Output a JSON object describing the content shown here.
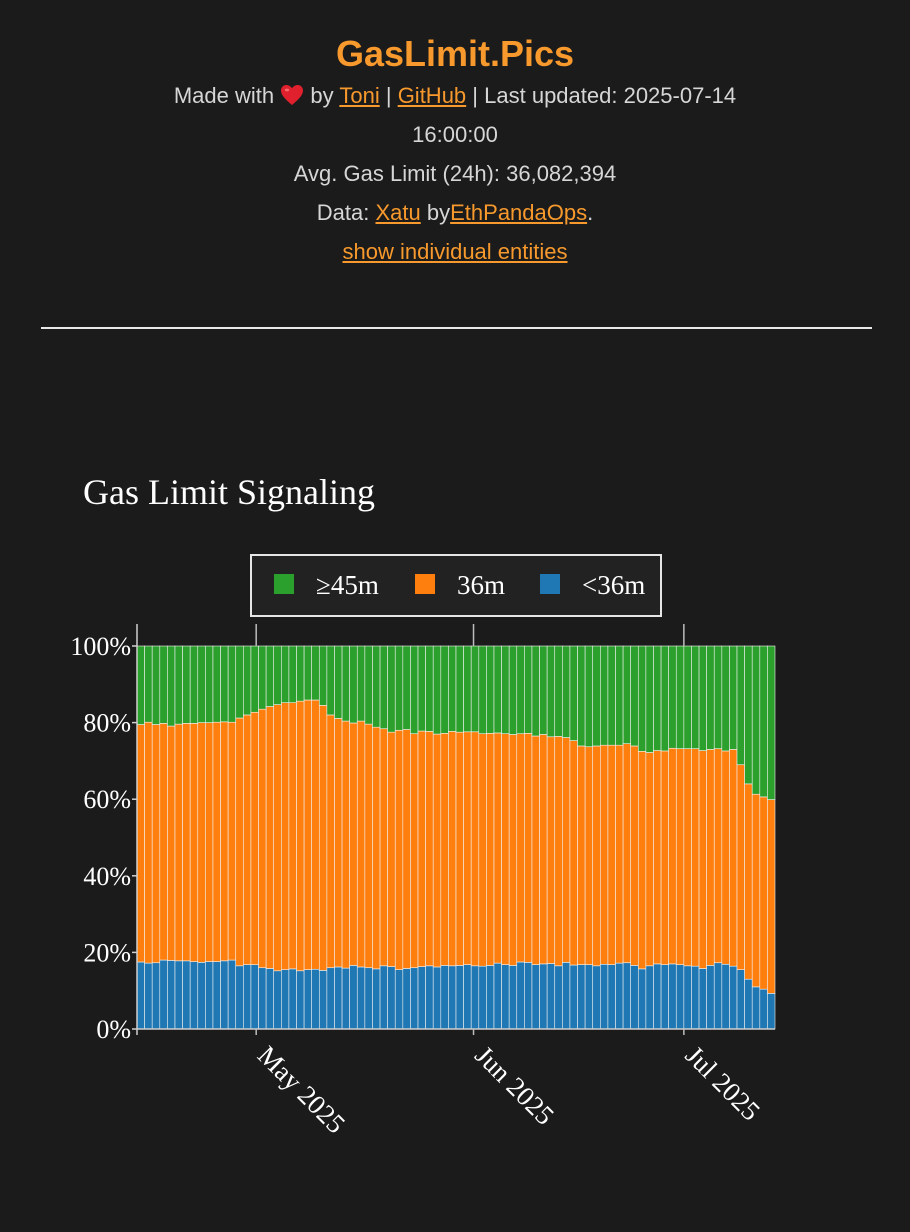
{
  "header": {
    "title": "GasLimit.Pics",
    "made_with": "Made with",
    "by": "by",
    "author_link": "Toni",
    "separator1": "|",
    "github_link": "GitHub",
    "separator2": "|",
    "last_updated_label": "Last updated: 2025-07-14",
    "last_updated_time": "16:00:00",
    "avg_label": "Avg. Gas Limit (24h): 36,082,394",
    "data_label": "Data:",
    "data_source_link": "Xatu",
    "data_by": "by",
    "data_org_link": "EthPandaOps",
    "data_period": ".",
    "toggle_link": "show individual entities"
  },
  "colors": {
    "accent": "#f7992c",
    "background": "#1b1b1b",
    "series_green": "#2ca02c",
    "series_orange": "#ff7f0e",
    "series_blue": "#1f77b4"
  },
  "chart_data": {
    "type": "bar",
    "stacked": true,
    "title": "Gas Limit Signaling",
    "ylim": [
      0,
      100
    ],
    "y_ticks": [
      "0%",
      "20%",
      "40%",
      "60%",
      "80%",
      "100%"
    ],
    "x_range": [
      "2025-04-14",
      "2025-07-14"
    ],
    "x_ticks": [
      {
        "date": "2025-05-01",
        "label": "May 2025"
      },
      {
        "date": "2025-06-01",
        "label": "Jun 2025"
      },
      {
        "date": "2025-07-01",
        "label": "Jul 2025"
      }
    ],
    "legend_position": "top-center",
    "series": [
      {
        "name": "<36m",
        "color": "#1f77b4",
        "values": [
          17.5,
          17.2,
          17.3,
          18.0,
          17.9,
          17.8,
          17.8,
          17.6,
          17.4,
          17.6,
          17.6,
          17.8,
          18.0,
          16.5,
          16.8,
          16.8,
          16.0,
          15.8,
          15.2,
          15.5,
          15.7,
          15.2,
          15.5,
          15.6,
          15.3,
          16.0,
          16.2,
          15.9,
          16.6,
          16.2,
          16.0,
          15.7,
          16.5,
          16.3,
          15.5,
          15.8,
          16.0,
          16.3,
          16.5,
          16.2,
          16.6,
          16.5,
          16.6,
          16.8,
          16.5,
          16.4,
          16.6,
          17.2,
          16.8,
          16.6,
          17.5,
          17.4,
          16.8,
          17.0,
          17.1,
          16.5,
          17.4,
          16.7,
          16.8,
          16.8,
          16.5,
          16.9,
          16.8,
          17.2,
          17.3,
          16.6,
          15.7,
          16.5,
          17.0,
          16.8,
          17.0,
          16.8,
          16.5,
          16.4,
          15.8,
          16.6,
          17.3,
          16.9,
          16.4,
          15.5,
          13.0,
          11.0,
          10.4,
          9.3
        ]
      },
      {
        "name": "36m",
        "color": "#ff7f0e",
        "values": [
          62.0,
          62.9,
          62.2,
          61.8,
          61.2,
          61.8,
          62.0,
          62.2,
          62.6,
          62.4,
          62.5,
          62.4,
          62.1,
          64.7,
          65.2,
          65.9,
          67.5,
          68.4,
          69.5,
          69.7,
          69.5,
          70.4,
          70.4,
          70.3,
          69.2,
          66.0,
          64.9,
          64.5,
          63.3,
          64.2,
          63.6,
          63.1,
          61.9,
          61.2,
          62.5,
          62.4,
          61.1,
          61.5,
          61.2,
          60.8,
          60.6,
          61.2,
          60.9,
          60.8,
          61.1,
          60.7,
          60.6,
          60.1,
          60.3,
          60.3,
          59.6,
          59.8,
          59.7,
          59.9,
          59.2,
          59.9,
          58.7,
          58.6,
          57.1,
          56.9,
          57.4,
          57.2,
          57.3,
          56.9,
          57.2,
          57.3,
          56.8,
          55.7,
          55.7,
          55.8,
          56.3,
          56.4,
          56.7,
          56.8,
          56.9,
          56.4,
          55.9,
          55.7,
          56.6,
          53.5,
          51.0,
          50.3,
          50.2,
          50.6
        ]
      },
      {
        "name": "≥45m",
        "color": "#2ca02c",
        "values": [
          20.5,
          19.9,
          20.5,
          20.2,
          20.9,
          20.4,
          20.2,
          20.2,
          20.0,
          20.0,
          19.9,
          19.8,
          19.9,
          18.8,
          18.0,
          17.3,
          16.5,
          15.8,
          15.3,
          14.8,
          14.8,
          14.4,
          14.1,
          14.1,
          15.5,
          18.0,
          18.9,
          19.6,
          20.1,
          19.6,
          20.4,
          21.2,
          21.6,
          22.5,
          22.0,
          21.8,
          22.9,
          22.2,
          22.3,
          23.0,
          22.8,
          22.3,
          22.5,
          22.4,
          22.4,
          22.9,
          22.8,
          22.7,
          22.9,
          23.1,
          22.9,
          22.8,
          23.5,
          23.1,
          23.7,
          23.6,
          23.9,
          24.7,
          26.1,
          26.3,
          26.1,
          25.9,
          25.9,
          25.9,
          25.5,
          26.1,
          27.5,
          27.8,
          27.3,
          27.4,
          26.7,
          26.8,
          26.8,
          26.8,
          27.3,
          27.0,
          26.8,
          27.4,
          27.0,
          31.0,
          36.0,
          38.7,
          39.4,
          40.1
        ]
      }
    ]
  }
}
